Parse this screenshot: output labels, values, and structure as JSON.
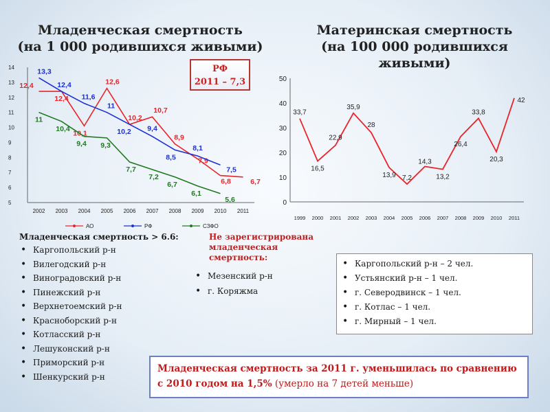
{
  "titles": {
    "left_line1": "Младенческая смертность",
    "left_line2": "(на 1 000 родившихся живыми)",
    "right_line1": "Материнская смертность",
    "right_line2": "(на 100 000 родившихся живыми)"
  },
  "rf_box": {
    "line1": "РФ",
    "line2": "2011 – 7,3"
  },
  "colors": {
    "ao": "#e8252b",
    "rf": "#1a2fd6",
    "szfo": "#1f7a1f",
    "maternal": "#e8252b",
    "summary_border": "#6a7fc4"
  },
  "chart_data": [
    {
      "type": "line",
      "categories": [
        "2002",
        "2003",
        "2004",
        "2005",
        "2006",
        "2007",
        "2008",
        "2009",
        "2010",
        "2011"
      ],
      "ylim": [
        5,
        14
      ],
      "yticks": [
        "5",
        "6",
        "7",
        "8",
        "9",
        "10",
        "11",
        "12",
        "13",
        "14"
      ],
      "series": [
        {
          "name": "АО",
          "color": "#e8252b",
          "values": [
            12.4,
            12.4,
            10.1,
            12.6,
            10.2,
            10.7,
            8.9,
            7.9,
            6.8,
            6.7
          ],
          "labels": [
            "12,4",
            "12,4",
            "10,1",
            "12,6",
            "10,2",
            "10,7",
            "8,9",
            "7,9",
            "6,8",
            "6,7"
          ]
        },
        {
          "name": "РФ",
          "color": "#1a2fd6",
          "values": [
            13.3,
            12.4,
            11.6,
            11.0,
            10.2,
            9.4,
            8.5,
            8.1,
            7.5,
            null
          ],
          "labels": [
            "13,3",
            "12,4",
            "11,6",
            "11",
            "10,2",
            "9,4",
            "8,5",
            "8,1",
            "7,5",
            ""
          ]
        },
        {
          "name": "СЗФО",
          "color": "#1f7a1f",
          "values": [
            11.0,
            10.4,
            9.4,
            9.3,
            7.7,
            7.2,
            6.7,
            6.1,
            5.6,
            null
          ],
          "labels": [
            "11",
            "10,4",
            "9,4",
            "9,3",
            "7,7",
            "7,2",
            "6,7",
            "6,1",
            "5,6",
            ""
          ]
        }
      ]
    },
    {
      "type": "line",
      "categories": [
        "1999",
        "2000",
        "2001",
        "2002",
        "2003",
        "2004",
        "2005",
        "2006",
        "2007",
        "2008",
        "2009",
        "2010",
        "2011"
      ],
      "ylim": [
        0,
        50
      ],
      "yticks": [
        "0",
        "10",
        "20",
        "30",
        "40",
        "50"
      ],
      "series": [
        {
          "color": "#e8252b",
          "values": [
            33.7,
            16.5,
            22.9,
            35.9,
            28,
            13.9,
            7.2,
            14.3,
            13.2,
            26.4,
            33.8,
            20.3,
            42
          ],
          "labels": [
            "33,7",
            "16,5",
            "22,9",
            "35,9",
            "28",
            "13,9",
            "7,2",
            "14,3",
            "13,2",
            "26,4",
            "33,8",
            "20,3",
            "42"
          ]
        }
      ]
    }
  ],
  "list_left": {
    "header": "Младенческая смертность > 6.6:",
    "items": [
      "Каргопольский р-н",
      "Вилегодский р-н",
      "Виноградовский р-н",
      "Пинежский р-н",
      "Верхнетоемский р-н",
      "Красноборский р-н",
      "Котласский р-н",
      "Лешуконский р-н",
      "Приморский р-н",
      "Шенкурский р-н"
    ]
  },
  "list_mid": {
    "header": "Не зарегистрирована младенческая смертность:",
    "items": [
      "Мезенский р-н",
      "г. Коряжма"
    ]
  },
  "list_right": {
    "items": [
      "Каргопольский р-н – 2 чел.",
      "Устьянский р-н – 1 чел.",
      "г. Северодвинск – 1 чел.",
      "г. Котлас – 1 чел.",
      "г. Мирный – 1 чел."
    ]
  },
  "summary": {
    "bold": "Младенческая смертность за 2011 г. уменьшилась по сравнению с 2010 годом на 1,5%",
    "normal": " (умерло на 7 детей меньше)"
  }
}
